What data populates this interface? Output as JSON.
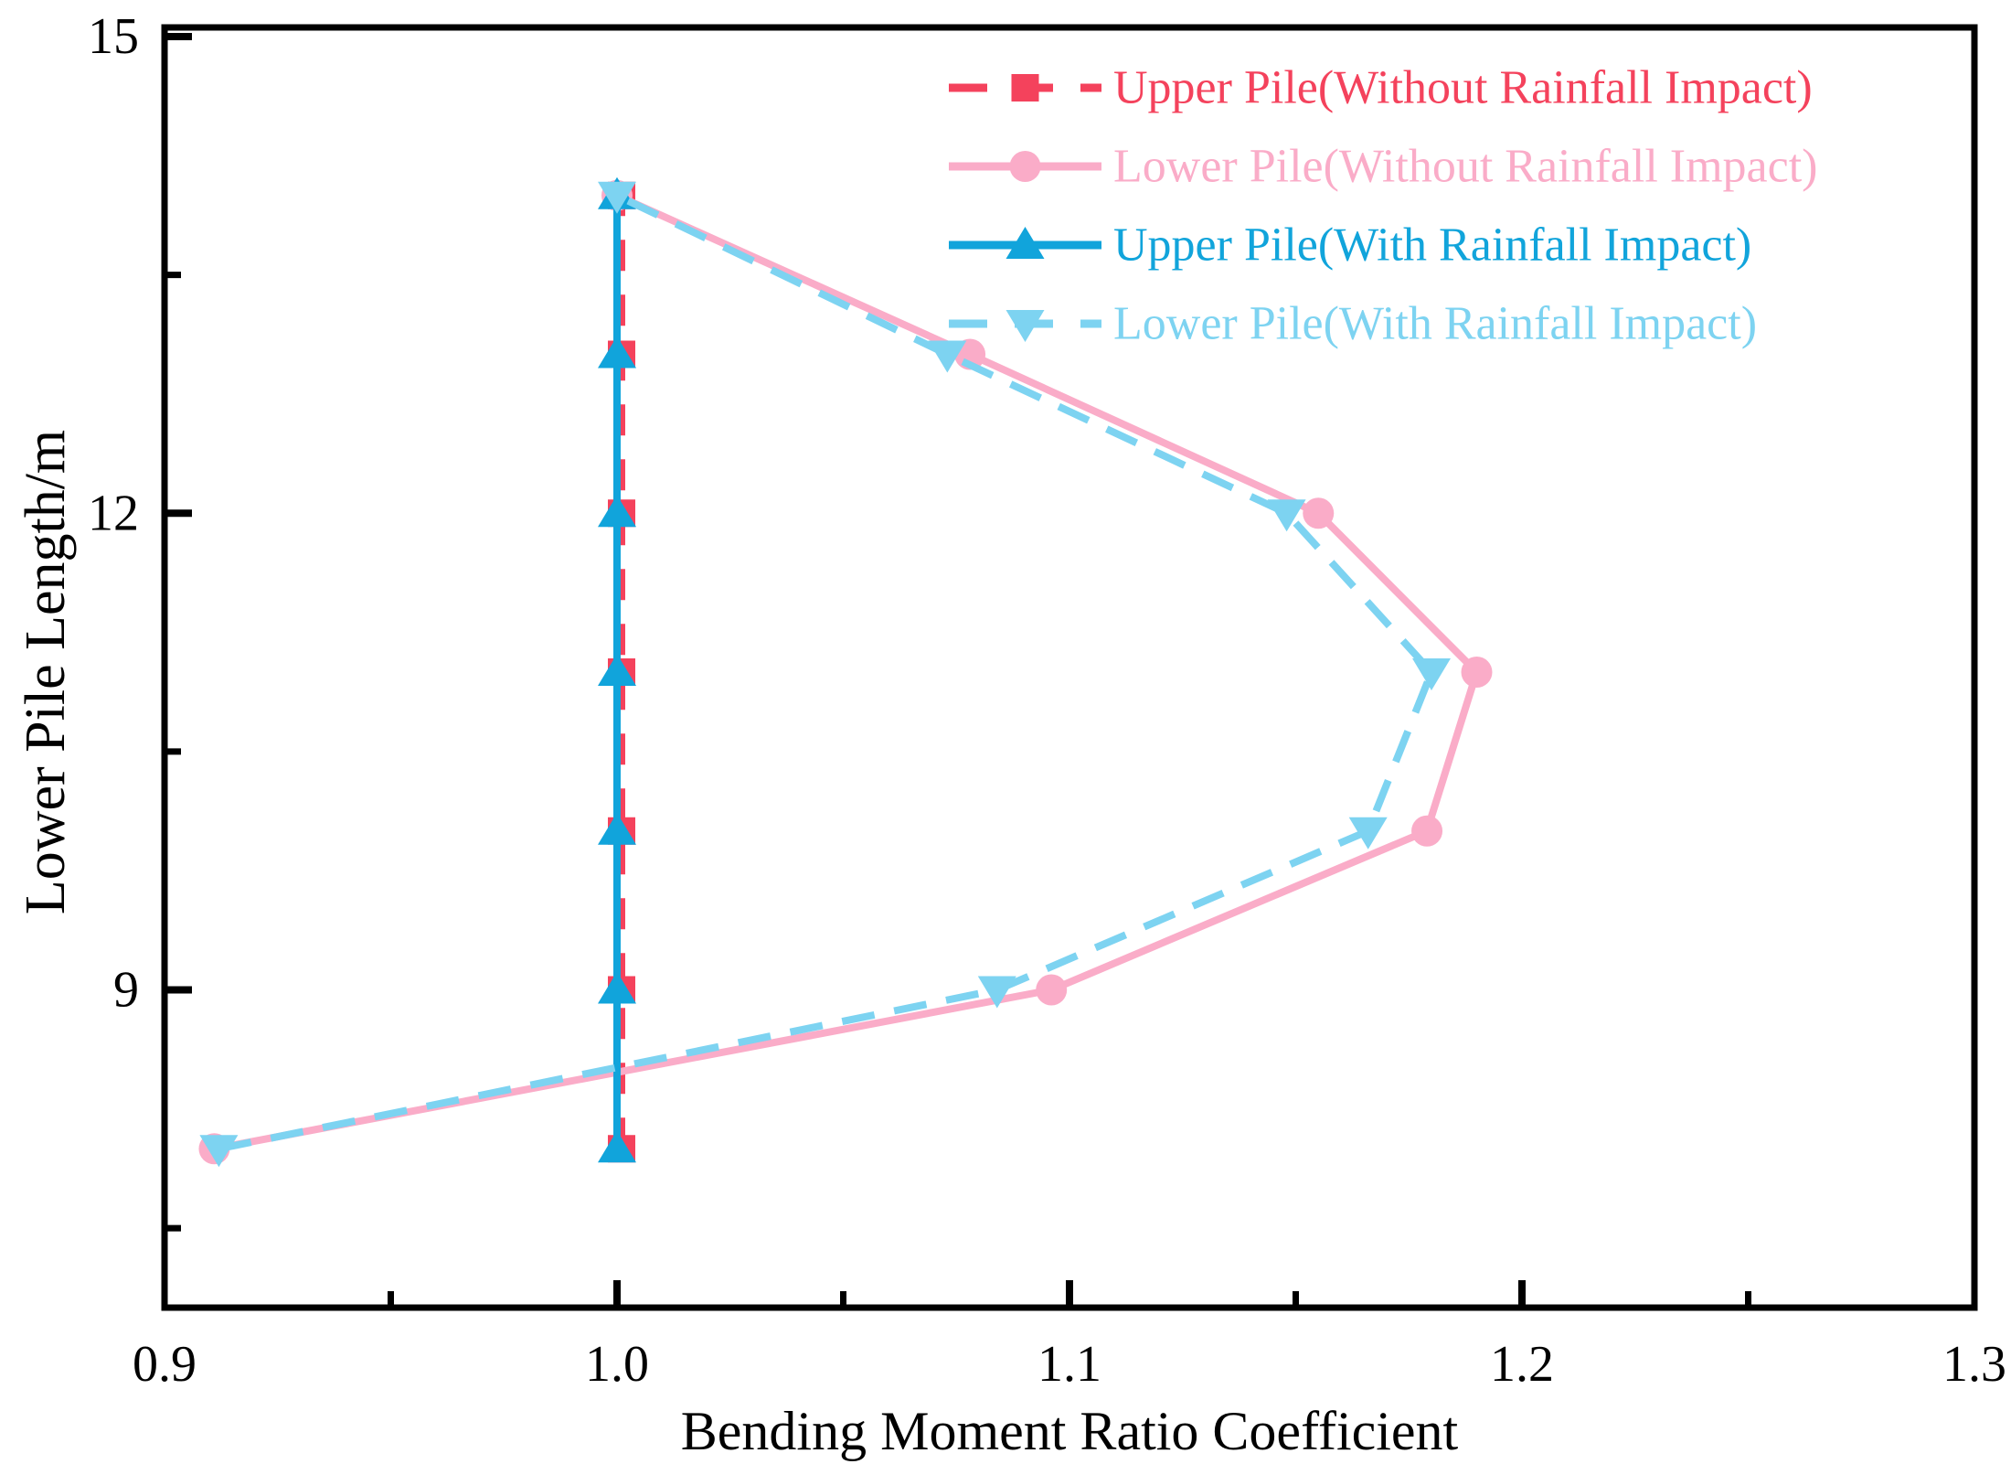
{
  "figure": {
    "background": "#FFFFFF",
    "axis_color": "#000000"
  },
  "chart_data": {
    "type": "line",
    "xlabel": "Bending Moment Ratio Coefficient",
    "ylabel": "Lower Pile Length/m",
    "xlim": [
      0.9,
      1.3
    ],
    "ylim": [
      7,
      15
    ],
    "grid": false,
    "legend_position": "top-right-inside",
    "x_major_ticks": [
      0.9,
      1.0,
      1.1,
      1.2,
      1.3
    ],
    "x_tick_labels": [
      "0.9",
      "1.0",
      "1.1",
      "1.2",
      "1.3"
    ],
    "x_minor_ticks": [
      0.95,
      1.05,
      1.15,
      1.25
    ],
    "y_major_ticks": [
      15,
      12,
      9
    ],
    "y_tick_labels": [
      "15",
      "12",
      "9"
    ],
    "y_minor_ticks": [
      13.5,
      10.5,
      7.5
    ],
    "series": [
      {
        "name": "Upper Pile(Without Rainfall Impact)",
        "color": "#F4425C",
        "line_style": "dashed",
        "marker": "square",
        "points": [
          [
            1.0,
            8
          ],
          [
            1.0,
            9
          ],
          [
            1.0,
            10
          ],
          [
            1.0,
            11
          ],
          [
            1.0,
            12
          ],
          [
            1.0,
            13
          ],
          [
            1.0,
            14
          ]
        ]
      },
      {
        "name": "Lower Pile(Without Rainfall Impact)",
        "color": "#FAACC8",
        "line_style": "solid",
        "marker": "circle",
        "points": [
          [
            0.911,
            8
          ],
          [
            1.096,
            9
          ],
          [
            1.179,
            10
          ],
          [
            1.19,
            11
          ],
          [
            1.155,
            12
          ],
          [
            1.078,
            13
          ],
          [
            1.0,
            14
          ]
        ]
      },
      {
        "name": "Upper Pile(With Rainfall Impact)",
        "color": "#11A4DB",
        "line_style": "solid",
        "marker": "triangle-up",
        "points": [
          [
            1.0,
            8
          ],
          [
            1.0,
            9
          ],
          [
            1.0,
            10
          ],
          [
            1.0,
            11
          ],
          [
            1.0,
            12
          ],
          [
            1.0,
            13
          ],
          [
            1.0,
            14
          ]
        ]
      },
      {
        "name": "Lower Pile(With Rainfall Impact)",
        "color": "#7DD3F1",
        "line_style": "dashed",
        "marker": "triangle-down",
        "points": [
          [
            0.912,
            8
          ],
          [
            1.084,
            9
          ],
          [
            1.166,
            10
          ],
          [
            1.18,
            11
          ],
          [
            1.148,
            12
          ],
          [
            1.073,
            13
          ],
          [
            1.0,
            14
          ]
        ]
      }
    ]
  }
}
